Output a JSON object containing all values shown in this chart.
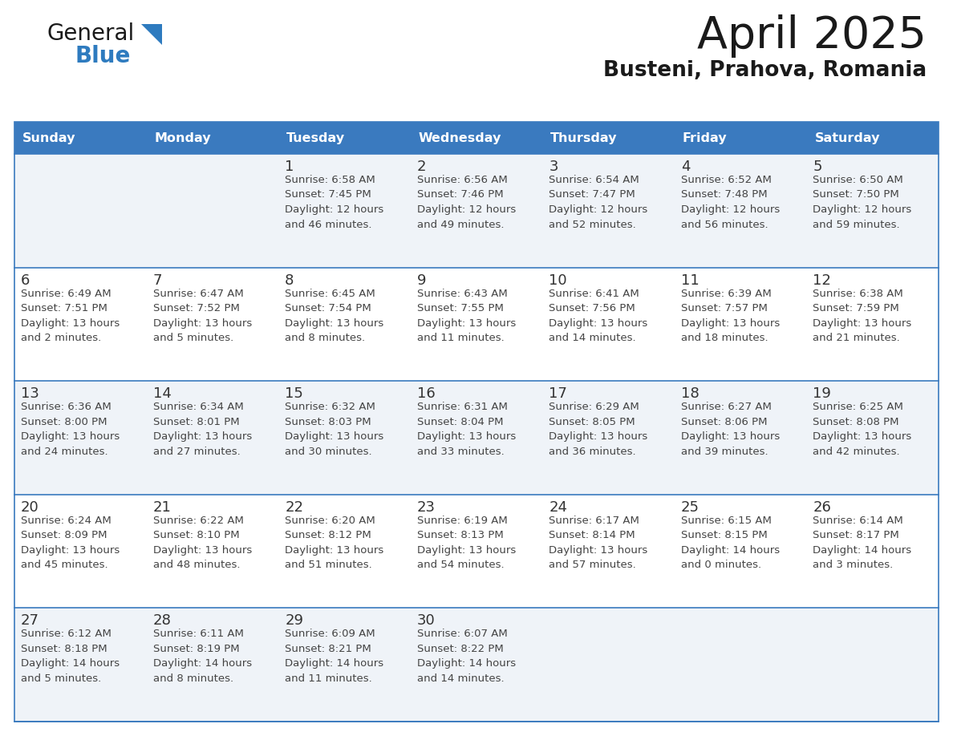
{
  "title": "April 2025",
  "subtitle": "Busteni, Prahova, Romania",
  "days_of_week": [
    "Sunday",
    "Monday",
    "Tuesday",
    "Wednesday",
    "Thursday",
    "Friday",
    "Saturday"
  ],
  "header_bg": "#3a7abf",
  "header_text": "#ffffff",
  "cell_bg_light": "#eff3f8",
  "cell_bg_white": "#ffffff",
  "row_line_color": "#3a7abf",
  "day_number_color": "#333333",
  "cell_text_color": "#444444",
  "title_color": "#1a1a1a",
  "subtitle_color": "#1a1a1a",
  "logo_general_color": "#1a1a1a",
  "logo_blue_color": "#2e7bbf",
  "calendar_data": [
    [
      {
        "day": null,
        "text": ""
      },
      {
        "day": null,
        "text": ""
      },
      {
        "day": 1,
        "text": "Sunrise: 6:58 AM\nSunset: 7:45 PM\nDaylight: 12 hours\nand 46 minutes."
      },
      {
        "day": 2,
        "text": "Sunrise: 6:56 AM\nSunset: 7:46 PM\nDaylight: 12 hours\nand 49 minutes."
      },
      {
        "day": 3,
        "text": "Sunrise: 6:54 AM\nSunset: 7:47 PM\nDaylight: 12 hours\nand 52 minutes."
      },
      {
        "day": 4,
        "text": "Sunrise: 6:52 AM\nSunset: 7:48 PM\nDaylight: 12 hours\nand 56 minutes."
      },
      {
        "day": 5,
        "text": "Sunrise: 6:50 AM\nSunset: 7:50 PM\nDaylight: 12 hours\nand 59 minutes."
      }
    ],
    [
      {
        "day": 6,
        "text": "Sunrise: 6:49 AM\nSunset: 7:51 PM\nDaylight: 13 hours\nand 2 minutes."
      },
      {
        "day": 7,
        "text": "Sunrise: 6:47 AM\nSunset: 7:52 PM\nDaylight: 13 hours\nand 5 minutes."
      },
      {
        "day": 8,
        "text": "Sunrise: 6:45 AM\nSunset: 7:54 PM\nDaylight: 13 hours\nand 8 minutes."
      },
      {
        "day": 9,
        "text": "Sunrise: 6:43 AM\nSunset: 7:55 PM\nDaylight: 13 hours\nand 11 minutes."
      },
      {
        "day": 10,
        "text": "Sunrise: 6:41 AM\nSunset: 7:56 PM\nDaylight: 13 hours\nand 14 minutes."
      },
      {
        "day": 11,
        "text": "Sunrise: 6:39 AM\nSunset: 7:57 PM\nDaylight: 13 hours\nand 18 minutes."
      },
      {
        "day": 12,
        "text": "Sunrise: 6:38 AM\nSunset: 7:59 PM\nDaylight: 13 hours\nand 21 minutes."
      }
    ],
    [
      {
        "day": 13,
        "text": "Sunrise: 6:36 AM\nSunset: 8:00 PM\nDaylight: 13 hours\nand 24 minutes."
      },
      {
        "day": 14,
        "text": "Sunrise: 6:34 AM\nSunset: 8:01 PM\nDaylight: 13 hours\nand 27 minutes."
      },
      {
        "day": 15,
        "text": "Sunrise: 6:32 AM\nSunset: 8:03 PM\nDaylight: 13 hours\nand 30 minutes."
      },
      {
        "day": 16,
        "text": "Sunrise: 6:31 AM\nSunset: 8:04 PM\nDaylight: 13 hours\nand 33 minutes."
      },
      {
        "day": 17,
        "text": "Sunrise: 6:29 AM\nSunset: 8:05 PM\nDaylight: 13 hours\nand 36 minutes."
      },
      {
        "day": 18,
        "text": "Sunrise: 6:27 AM\nSunset: 8:06 PM\nDaylight: 13 hours\nand 39 minutes."
      },
      {
        "day": 19,
        "text": "Sunrise: 6:25 AM\nSunset: 8:08 PM\nDaylight: 13 hours\nand 42 minutes."
      }
    ],
    [
      {
        "day": 20,
        "text": "Sunrise: 6:24 AM\nSunset: 8:09 PM\nDaylight: 13 hours\nand 45 minutes."
      },
      {
        "day": 21,
        "text": "Sunrise: 6:22 AM\nSunset: 8:10 PM\nDaylight: 13 hours\nand 48 minutes."
      },
      {
        "day": 22,
        "text": "Sunrise: 6:20 AM\nSunset: 8:12 PM\nDaylight: 13 hours\nand 51 minutes."
      },
      {
        "day": 23,
        "text": "Sunrise: 6:19 AM\nSunset: 8:13 PM\nDaylight: 13 hours\nand 54 minutes."
      },
      {
        "day": 24,
        "text": "Sunrise: 6:17 AM\nSunset: 8:14 PM\nDaylight: 13 hours\nand 57 minutes."
      },
      {
        "day": 25,
        "text": "Sunrise: 6:15 AM\nSunset: 8:15 PM\nDaylight: 14 hours\nand 0 minutes."
      },
      {
        "day": 26,
        "text": "Sunrise: 6:14 AM\nSunset: 8:17 PM\nDaylight: 14 hours\nand 3 minutes."
      }
    ],
    [
      {
        "day": 27,
        "text": "Sunrise: 6:12 AM\nSunset: 8:18 PM\nDaylight: 14 hours\nand 5 minutes."
      },
      {
        "day": 28,
        "text": "Sunrise: 6:11 AM\nSunset: 8:19 PM\nDaylight: 14 hours\nand 8 minutes."
      },
      {
        "day": 29,
        "text": "Sunrise: 6:09 AM\nSunset: 8:21 PM\nDaylight: 14 hours\nand 11 minutes."
      },
      {
        "day": 30,
        "text": "Sunrise: 6:07 AM\nSunset: 8:22 PM\nDaylight: 14 hours\nand 14 minutes."
      },
      {
        "day": null,
        "text": ""
      },
      {
        "day": null,
        "text": ""
      },
      {
        "day": null,
        "text": ""
      }
    ]
  ]
}
